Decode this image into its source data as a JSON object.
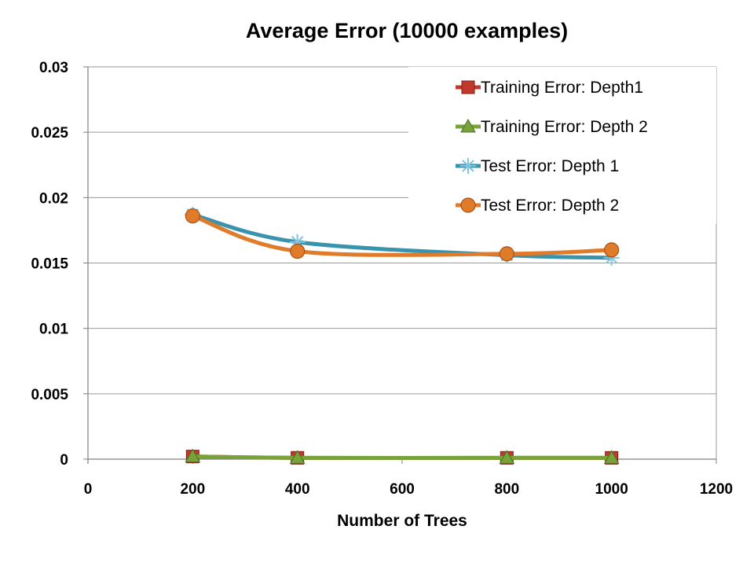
{
  "chart_data": {
    "type": "line",
    "title": "Average Error (10000 examples)",
    "xlabel": "Number of Trees",
    "ylabel": "",
    "xlim": [
      0,
      1200
    ],
    "ylim": [
      0,
      0.03
    ],
    "x_ticks": [
      "0",
      "200",
      "400",
      "600",
      "800",
      "1000",
      "1200"
    ],
    "y_ticks": [
      "0",
      "0.005",
      "0.01",
      "0.015",
      "0.02",
      "0.025",
      "0.03"
    ],
    "grid": "horizontal",
    "legend_position": "top-right",
    "x": [
      200,
      400,
      800,
      1000
    ],
    "series": [
      {
        "name": "Training Error: Depth1",
        "values": [
          0.0002,
          0.0001,
          0.0001,
          0.0001
        ],
        "color": "#C0392B",
        "marker": "square"
      },
      {
        "name": "Training Error: Depth 2",
        "values": [
          0.0002,
          0.0001,
          0.0001,
          0.0001
        ],
        "color": "#77A33A",
        "marker": "triangle"
      },
      {
        "name": "Test Error: Depth 1",
        "values": [
          0.0187,
          0.0166,
          0.0156,
          0.0154
        ],
        "color": "#3A93AD",
        "marker": "star"
      },
      {
        "name": "Test Error: Depth 2",
        "values": [
          0.0186,
          0.0159,
          0.0157,
          0.016
        ],
        "color": "#E07B2A",
        "marker": "circle"
      }
    ]
  }
}
